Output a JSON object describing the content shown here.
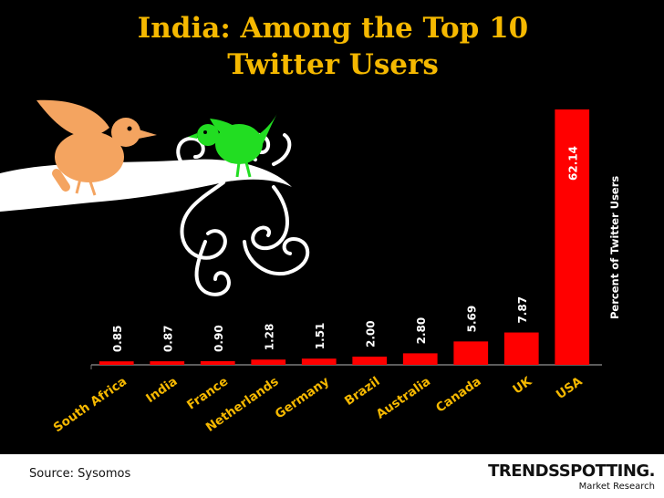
{
  "slide": {
    "title_line1": "India: Among the Top 10",
    "title_line2": "Twitter Users"
  },
  "footer": {
    "source": "Source: Sysomos",
    "brand_name": "TRENDSSPOTTING.",
    "brand_sub": "Market Research"
  },
  "colors": {
    "background": "#000000",
    "title": "#f5b800",
    "bar": "#ff0000",
    "bird_orange": "#f4a460",
    "bird_green": "#22dd22"
  },
  "chart_data": {
    "type": "bar",
    "categories": [
      "South Africa",
      "India",
      "France",
      "Netherlands",
      "Germany",
      "Brazil",
      "Australia",
      "Canada",
      "UK",
      "USA"
    ],
    "values": [
      0.85,
      0.87,
      0.9,
      1.28,
      1.51,
      2.0,
      2.8,
      5.69,
      7.87,
      62.14
    ],
    "labels": [
      "0.85",
      "0.87",
      "0.90",
      "1.28",
      "1.51",
      "2.00",
      "2.80",
      "5.69",
      "7.87",
      "62.14"
    ],
    "title": "",
    "xlabel": "",
    "ylabel": "Percent of Twitter Users",
    "ylim": [
      0,
      70
    ],
    "grid": false,
    "legend": "none"
  }
}
